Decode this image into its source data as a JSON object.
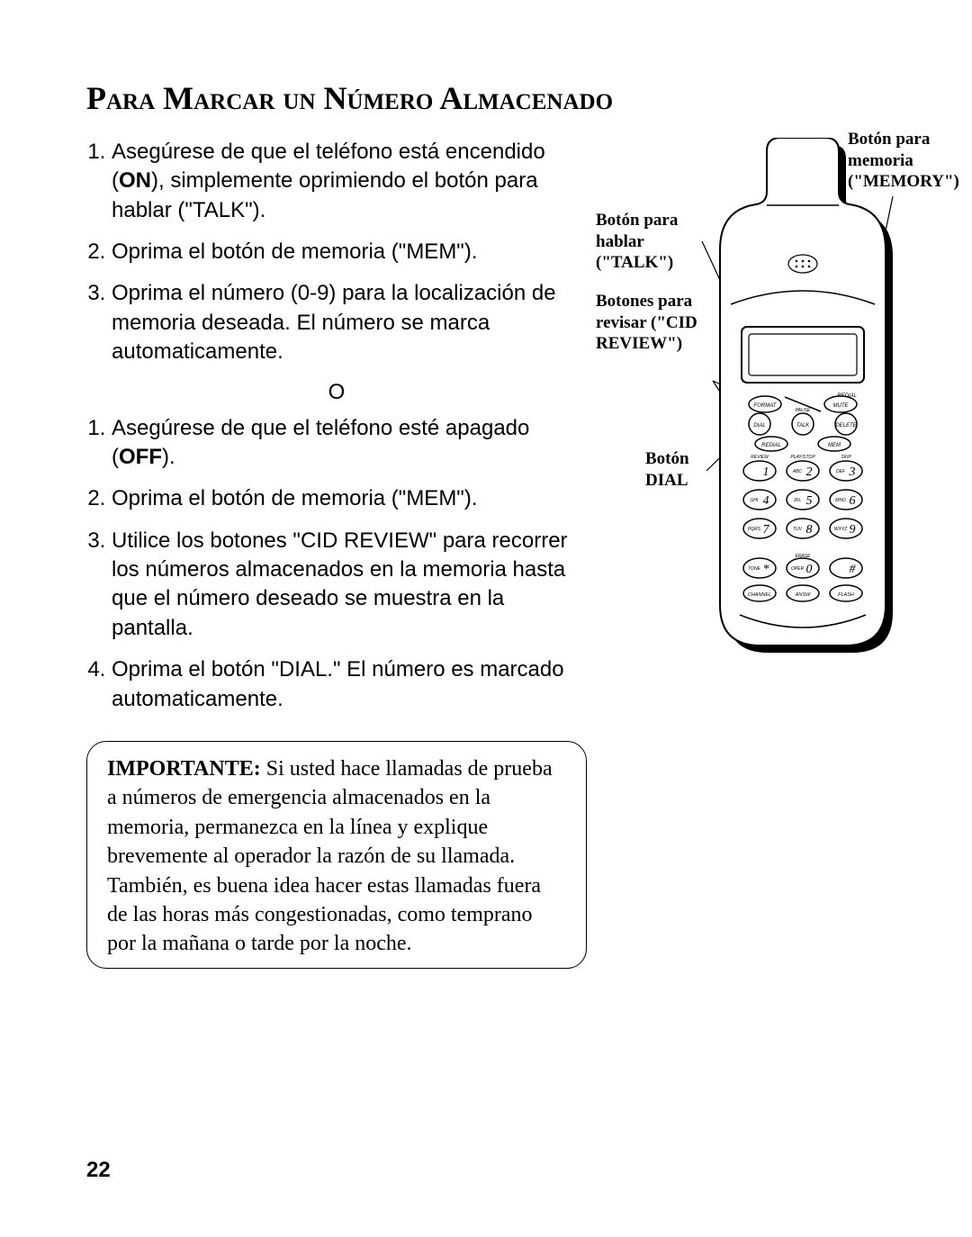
{
  "title": "Para Marcar un Número Almacenado",
  "listA": {
    "i1_pre": "Asegúrese de que el teléfono está encendido (",
    "i1_bold": "ON",
    "i1_post": "), simplemente oprimiendo el botón para hablar (\"TALK\").",
    "i2": "Oprima el botón de memoria (\"MEM\").",
    "i3": "Oprima el número (0-9) para la localización de memoria deseada. El número se marca automaticamente."
  },
  "separator": "O",
  "listB": {
    "i1_pre": "Asegúrese de que el teléfono esté apagado (",
    "i1_bold": "OFF",
    "i1_post": ").",
    "i2": "Oprima el botón de memoria (\"MEM\").",
    "i3": "Utilice los botones \"CID REVIEW\" para recorrer los números almacenados en la memoria  hasta que el número deseado se muestra en la pantalla.",
    "i4": "Oprima el botón \"DIAL.\" El número es marcado automaticamente."
  },
  "note": {
    "bold": "IMPORTANTE:",
    "rest": " Si usted hace llamadas de prueba a números de emergencia almacenados en la memoria, permanezca en la línea y explique brevemente al operador la razón de su llamada. También, es buena idea hacer estas llamadas fuera de las horas más congestionadas, como temprano por la mañana o tarde por la noche."
  },
  "pagenum": "22",
  "callouts": {
    "memory": "Botón para memoria (\"MEMORY\")",
    "talk": "Botón para hablar (\"TALK\")",
    "cid": "Botones para revisar (\"CID REVIEW\")",
    "dial": "Botón DIAL"
  },
  "phone": {
    "outline": "#000000",
    "shadow": "#000000",
    "body_fill": "#ffffff",
    "screen_fill": "#ffffff",
    "key_fill": "#ffffff",
    "keys": {
      "row_oval_labels": [
        "FORMAT",
        "",
        "MUTE"
      ],
      "row_talk_labels": [
        "DIAL",
        "TALK",
        "DELETE"
      ],
      "row_redial_labels": [
        "REDIAL",
        "",
        "MEM"
      ],
      "row_small_labels": [
        "REVIEW",
        "PLAY/STOP",
        "SKIP"
      ],
      "digits": [
        [
          "",
          "1",
          "ABC",
          "2",
          "DEF",
          "3"
        ],
        [
          "GHI",
          "4",
          "JKL",
          "5",
          "MNO",
          "6"
        ],
        [
          "PQRS",
          "7",
          "TUV",
          "8",
          "WXYZ",
          "9"
        ],
        [
          "TONE",
          "*",
          "OPER",
          "0",
          "",
          "#"
        ]
      ],
      "bottom": [
        "CHANNEL",
        "ANSW",
        "FLASH"
      ],
      "erase": "ERASE",
      "pause": "PAUSE",
      "redial_sub": "REDIAL"
    }
  }
}
